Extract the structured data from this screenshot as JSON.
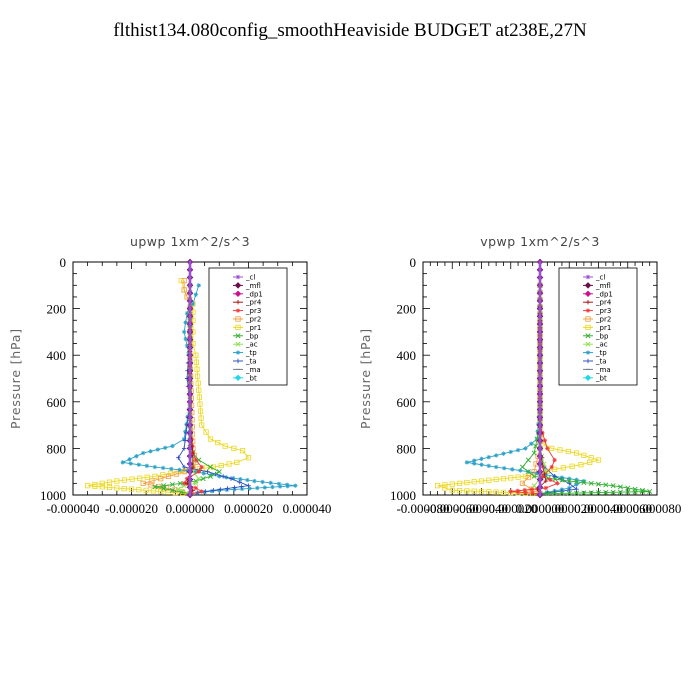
{
  "page": {
    "title": "flthist134.080config_smoothHeaviside  BUDGET at238E,27N"
  },
  "legend_entries": [
    {
      "label": "_cl",
      "color": "#9b4fd8",
      "marker": "star"
    },
    {
      "label": "_mfl",
      "color": "#6b0f4a",
      "marker": "diamond"
    },
    {
      "label": "_dp1",
      "color": "#cc1090",
      "marker": "diamond"
    },
    {
      "label": "_pr4",
      "color": "#b01818",
      "marker": "plus"
    },
    {
      "label": "_pr3",
      "color": "#f03a3a",
      "marker": "star"
    },
    {
      "label": "_pr2",
      "color": "#f4a040",
      "marker": "square"
    },
    {
      "label": "_pr1",
      "color": "#ecd820",
      "marker": "square"
    },
    {
      "label": "_bp",
      "color": "#30b030",
      "marker": "cross"
    },
    {
      "label": "_ac",
      "color": "#90e050",
      "marker": "cross"
    },
    {
      "label": "_tp",
      "color": "#2aa0c8",
      "marker": "star"
    },
    {
      "label": "_ta",
      "color": "#3050c0",
      "marker": "plus"
    },
    {
      "label": "_ma",
      "color": "#708090",
      "marker": "dash"
    },
    {
      "label": "_bt",
      "color": "#20d8e8",
      "marker": "diamond"
    }
  ],
  "chart_data": [
    {
      "type": "line",
      "title": "upwp   1xm^2/s^3",
      "xlabel": "",
      "ylabel": "Pressure [hPa]",
      "xlim": [
        -4e-05,
        4e-05
      ],
      "ylim": [
        1000,
        0
      ],
      "y_inverted": true,
      "xticks": [
        -4e-05,
        -2e-05,
        0,
        2e-05,
        4e-05
      ],
      "xtick_labels": [
        "-0.000040",
        "-0.000020",
        "0.000000",
        "0.000020",
        "0.000040"
      ],
      "yticks": [
        0,
        200,
        400,
        600,
        800,
        1000
      ],
      "ytick_labels": [
        "0",
        "200",
        "400",
        "600",
        "800",
        "1000"
      ],
      "legend_position": "top-right",
      "series": [
        {
          "name": "_pr1",
          "color": "#ecd820",
          "marker": "square",
          "x": [
            -3e-06,
            -2e-06,
            -1e-06,
            1e-06,
            1e-06,
            1e-06,
            1e-06,
            2e-06,
            4e-06,
            7e-06,
            1.2e-05,
            1.8e-05,
            2e-05,
            1.6e-05,
            8e-06,
            -4e-06,
            -1.2e-05,
            -2.5e-05,
            -3.5e-05,
            -2e-05,
            0
          ],
          "y": [
            80,
            120,
            150,
            180,
            250,
            300,
            350,
            400,
            700,
            760,
            790,
            810,
            840,
            860,
            880,
            900,
            920,
            940,
            960,
            975,
            995
          ]
        },
        {
          "name": "_pr2",
          "color": "#f4a040",
          "marker": "square",
          "x": [
            -2e-06,
            -2e-06,
            -1e-06,
            0,
            0,
            1e-06,
            2e-06,
            1e-06,
            -2e-06,
            -1e-05,
            -1.6e-05,
            -8e-06,
            0
          ],
          "y": [
            80,
            120,
            150,
            200,
            400,
            800,
            860,
            880,
            900,
            930,
            950,
            970,
            995
          ]
        },
        {
          "name": "_tp",
          "color": "#2aa0c8",
          "marker": "star",
          "x": [
            3e-06,
            2e-06,
            1e-06,
            -1e-06,
            -2e-06,
            -1e-06,
            0,
            0,
            -2e-06,
            -6e-06,
            -1.6e-05,
            -2.3e-05,
            -1.2e-05,
            2e-06,
            1e-05,
            2.2e-05,
            3.6e-05,
            1e-05,
            0
          ],
          "y": [
            100,
            140,
            180,
            220,
            300,
            360,
            420,
            600,
            760,
            790,
            820,
            860,
            880,
            900,
            920,
            940,
            960,
            980,
            995
          ]
        },
        {
          "name": "_ta",
          "color": "#3050c0",
          "marker": "plus",
          "x": [
            0,
            0,
            -1e-06,
            0,
            -1e-06,
            -2e-06,
            -4e-06,
            -2e-06,
            6e-06,
            1.4e-05,
            2e-05,
            8e-06,
            0
          ],
          "y": [
            100,
            300,
            500,
            600,
            700,
            800,
            840,
            880,
            900,
            930,
            960,
            980,
            995
          ]
        },
        {
          "name": "_bp",
          "color": "#30b030",
          "marker": "cross",
          "x": [
            0,
            0,
            0,
            1e-06,
            3e-06,
            7e-06,
            1e-05,
            7e-06,
            2e-06,
            -6e-06,
            -1.2e-05,
            -6e-06,
            0
          ],
          "y": [
            100,
            500,
            780,
            820,
            850,
            880,
            900,
            920,
            940,
            955,
            965,
            980,
            995
          ]
        },
        {
          "name": "_ac",
          "color": "#90e050",
          "marker": "cross",
          "x": [
            0,
            0,
            1e-06,
            3e-06,
            2e-06,
            -2e-06,
            -4e-06,
            0
          ],
          "y": [
            100,
            700,
            900,
            930,
            950,
            960,
            975,
            995
          ]
        },
        {
          "name": "_pr3",
          "color": "#f03a3a",
          "marker": "star",
          "x": [
            0,
            0,
            1e-06,
            2e-06,
            4e-06,
            3e-06,
            -1e-06,
            -2e-06,
            2e-06,
            4e-06,
            0
          ],
          "y": [
            100,
            700,
            820,
            850,
            880,
            900,
            930,
            950,
            970,
            985,
            995
          ]
        },
        {
          "name": "_pr4",
          "color": "#b01818",
          "marker": "plus",
          "x": [
            0,
            0,
            1e-06,
            1e-06,
            0,
            -1e-06,
            1e-06,
            0
          ],
          "y": [
            100,
            700,
            820,
            880,
            920,
            950,
            980,
            995
          ]
        },
        {
          "name": "_dp1",
          "color": "#cc1090",
          "marker": "diamond",
          "x": [
            0,
            0,
            0,
            0,
            0,
            0
          ],
          "y": [
            0,
            200,
            400,
            600,
            800,
            1000
          ]
        },
        {
          "name": "_mfl",
          "color": "#6b0f4a",
          "marker": "diamond",
          "x": [
            0,
            0,
            0,
            0,
            0,
            0
          ],
          "y": [
            0,
            200,
            400,
            600,
            800,
            1000
          ]
        },
        {
          "name": "_cl",
          "color": "#9b4fd8",
          "marker": "star",
          "x": [
            0,
            0,
            0,
            0,
            0,
            0
          ],
          "y": [
            0,
            200,
            400,
            600,
            800,
            1000
          ]
        }
      ]
    },
    {
      "type": "line",
      "title": "vpwp   1xm^2/s^3",
      "xlabel": "",
      "ylabel": "Pressure [hPa]",
      "xlim": [
        -8e-05,
        8e-05
      ],
      "ylim": [
        1000,
        0
      ],
      "y_inverted": true,
      "xticks": [
        -8e-05,
        -6e-05,
        -4e-05,
        -2e-05,
        0,
        2e-05,
        4e-05,
        6e-05,
        8e-05
      ],
      "xtick_labels": [
        "-0.000080",
        "-0.000060",
        "-0.000040",
        "-0.000020",
        "0.000000",
        "0.000020",
        "0.000040",
        "0.000060",
        "0.000080"
      ],
      "yticks": [
        0,
        200,
        400,
        600,
        800,
        1000
      ],
      "ytick_labels": [
        "0",
        "200",
        "400",
        "600",
        "800",
        "1000"
      ],
      "legend_position": "top-right",
      "series": [
        {
          "name": "_pr1",
          "color": "#ecd820",
          "marker": "square",
          "x": [
            0,
            0,
            2e-06,
            8e-06,
            2.5e-05,
            4e-05,
            2.8e-05,
            1e-05,
            -1e-05,
            -4e-05,
            -7e-05,
            -6e-05,
            0
          ],
          "y": [
            100,
            700,
            780,
            800,
            820,
            850,
            870,
            890,
            920,
            940,
            960,
            980,
            995
          ]
        },
        {
          "name": "_pr2",
          "color": "#f4a040",
          "marker": "square",
          "x": [
            0,
            0,
            -4e-06,
            -1.2e-05,
            -6e-06,
            0
          ],
          "y": [
            100,
            800,
            900,
            950,
            975,
            995
          ]
        },
        {
          "name": "_tp",
          "color": "#2aa0c8",
          "marker": "star",
          "x": [
            0,
            0,
            -2e-06,
            -1e-05,
            -3e-05,
            -5e-05,
            -3e-05,
            -8e-06,
            1e-05,
            3e-05,
            2e-05,
            0
          ],
          "y": [
            100,
            600,
            760,
            800,
            830,
            860,
            880,
            900,
            920,
            940,
            970,
            995
          ]
        },
        {
          "name": "_ta",
          "color": "#3050c0",
          "marker": "plus",
          "x": [
            0,
            0,
            3e-06,
            1e-05,
            2e-05,
            2.5e-05,
            0
          ],
          "y": [
            100,
            800,
            880,
            920,
            950,
            975,
            995
          ]
        },
        {
          "name": "_bp",
          "color": "#30b030",
          "marker": "cross",
          "x": [
            0,
            0,
            -4e-06,
            -1.2e-05,
            -4e-06,
            2e-05,
            5e-05,
            7.5e-05,
            0
          ],
          "y": [
            100,
            700,
            820,
            880,
            920,
            940,
            960,
            985,
            995
          ]
        },
        {
          "name": "_ac",
          "color": "#90e050",
          "marker": "cross",
          "x": [
            0,
            0,
            4e-06,
            -4e-06,
            0
          ],
          "y": [
            100,
            800,
            900,
            960,
            995
          ]
        },
        {
          "name": "_pr3",
          "color": "#f03a3a",
          "marker": "star",
          "x": [
            0,
            0,
            5e-06,
            1e-05,
            8e-06,
            2e-06,
            1.2e-05,
            4e-06,
            -2e-05,
            0
          ],
          "y": [
            100,
            700,
            800,
            850,
            880,
            920,
            950,
            970,
            985,
            995
          ]
        },
        {
          "name": "_pr4",
          "color": "#b01818",
          "marker": "plus",
          "x": [
            0,
            0,
            2e-06,
            4e-06,
            -2e-06,
            0
          ],
          "y": [
            100,
            800,
            880,
            940,
            975,
            995
          ]
        },
        {
          "name": "_dp1",
          "color": "#cc1090",
          "marker": "diamond",
          "x": [
            0,
            0,
            0,
            0,
            0,
            0
          ],
          "y": [
            0,
            200,
            400,
            600,
            800,
            1000
          ]
        },
        {
          "name": "_mfl",
          "color": "#6b0f4a",
          "marker": "diamond",
          "x": [
            0,
            0,
            0,
            0,
            0,
            0
          ],
          "y": [
            0,
            200,
            400,
            600,
            800,
            1000
          ]
        },
        {
          "name": "_cl",
          "color": "#9b4fd8",
          "marker": "star",
          "x": [
            0,
            0,
            0,
            0,
            0,
            0
          ],
          "y": [
            0,
            200,
            400,
            600,
            800,
            1000
          ]
        }
      ]
    }
  ]
}
